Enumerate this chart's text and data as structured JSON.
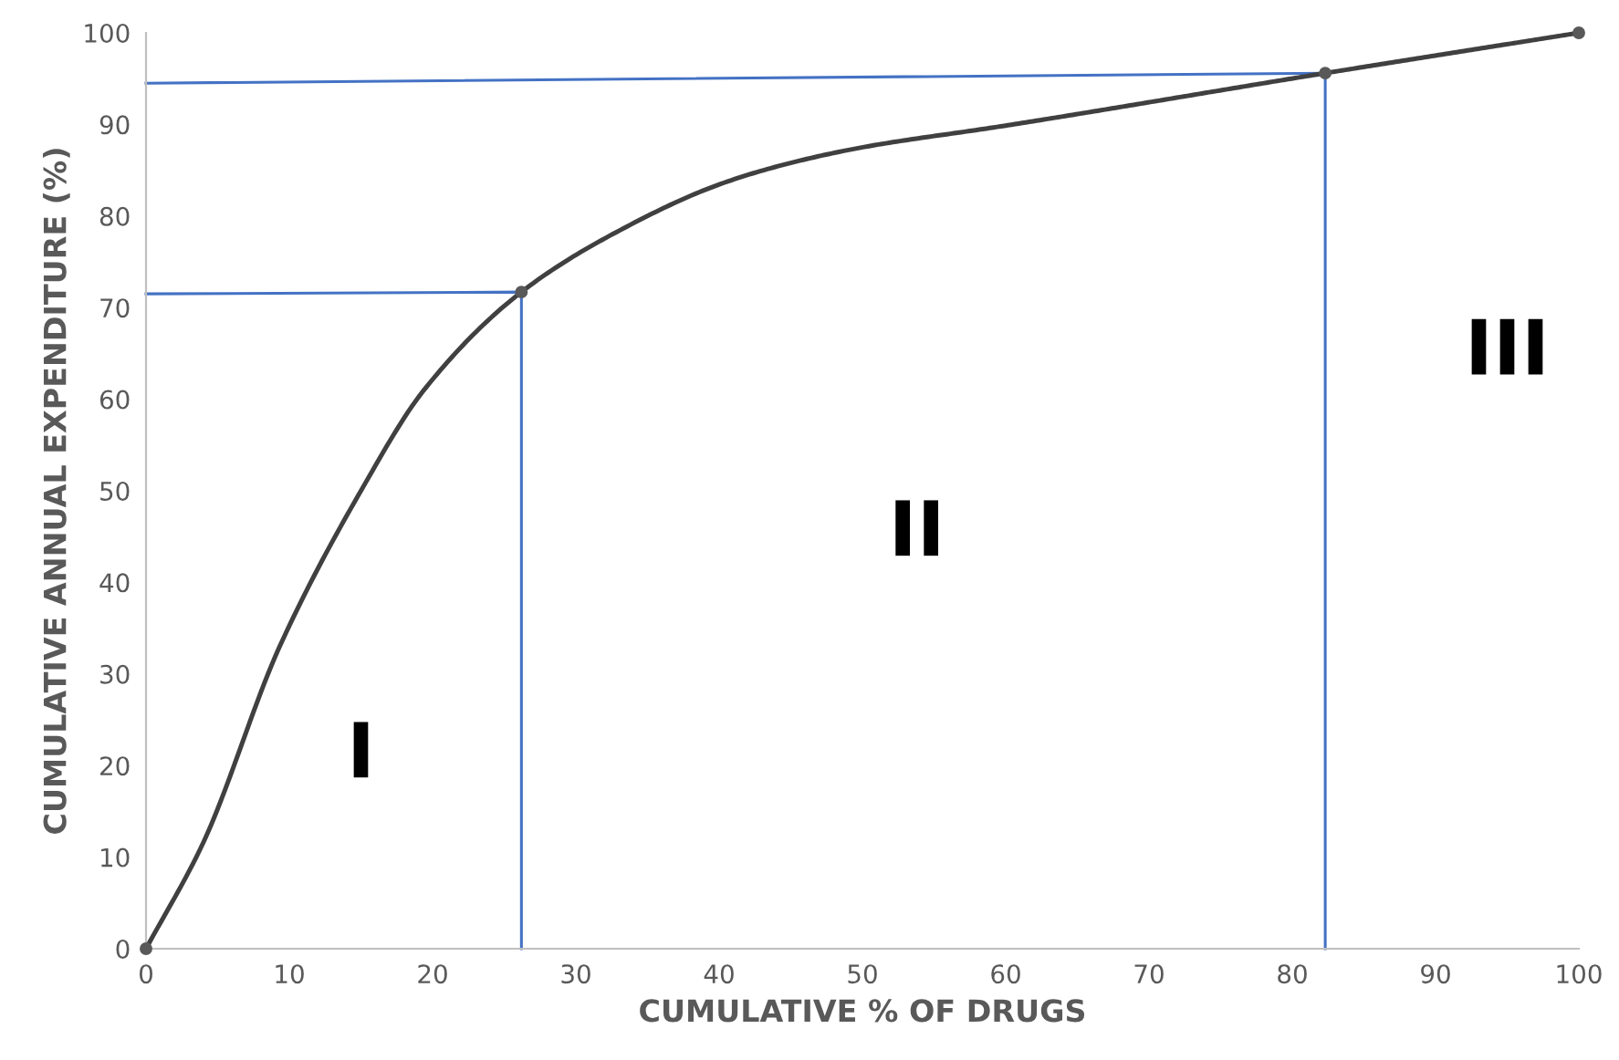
{
  "chart_data": {
    "type": "line",
    "xlabel": "CUMULATIVE % OF DRUGS",
    "ylabel": "CUMULATIVE ANNUAL EXPENDITURE (%)",
    "series": [
      {
        "color": "#4472c4",
        "marker": "none",
        "x": [
          0,
          26.2,
          26.2
        ],
        "values": [
          71.5,
          71.7,
          0
        ]
      },
      {
        "color": "#4472c4",
        "marker": "none",
        "x": [
          0,
          82.3,
          82.3
        ],
        "values": [
          94.5,
          95.6,
          0
        ]
      },
      {
        "color": "#404040",
        "marker": "none",
        "x": [
          0,
          4,
          9.3,
          15,
          19.4,
          26.2,
          32.9,
          40.1,
          45,
          50,
          59.7,
          82.3,
          100
        ],
        "values": [
          0,
          11.6,
          32.9,
          50,
          61,
          71.7,
          78.3,
          83.5,
          85.8,
          87.5,
          89.8,
          95.6,
          100
        ]
      },
      {
        "type": "scatter",
        "color": "#595959",
        "marker": "circle",
        "x": [
          0,
          26.2,
          82.3,
          100
        ],
        "values": [
          0,
          71.7,
          95.6,
          100
        ]
      }
    ],
    "annotations": [
      "I",
      "II",
      "III"
    ],
    "xlim": [
      0,
      100
    ],
    "ylim": [
      0,
      100
    ],
    "xticks": [
      0,
      10,
      20,
      30,
      40,
      50,
      60,
      70,
      80,
      90,
      100
    ],
    "yticks": [
      0,
      10,
      20,
      30,
      40,
      50,
      60,
      70,
      80,
      90,
      100
    ],
    "grid": false,
    "legend": false
  }
}
